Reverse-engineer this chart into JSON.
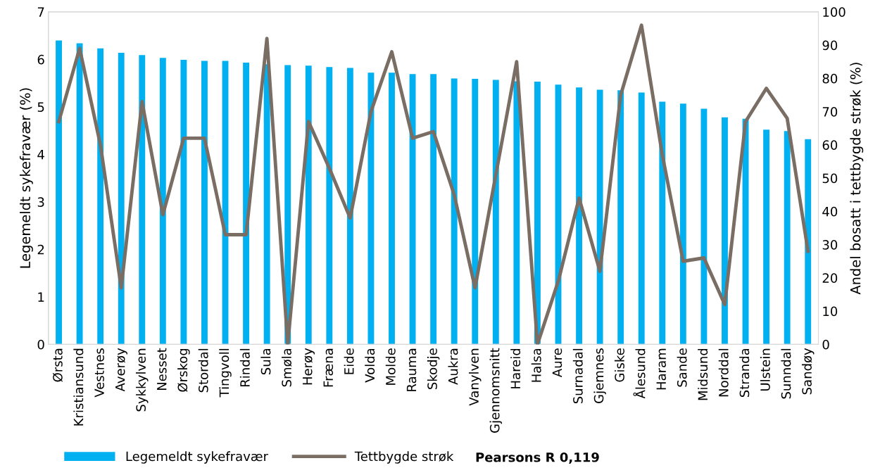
{
  "chart_data": {
    "type": "bar",
    "categories": [
      "Ørsta",
      "Kristiansund",
      "Vestnes",
      "Averøy",
      "Sykkylven",
      "Nesset",
      "Ørskog",
      "Stordal",
      "Tingvoll",
      "Rindal",
      "Sula",
      "Smøla",
      "Herøy",
      "Fræna",
      "Eide",
      "Volda",
      "Molde",
      "Rauma",
      "Skodje",
      "Aukra",
      "Vanylven",
      "Gjennomsnitt",
      "Hareid",
      "Halsa",
      "Aure",
      "Surnadal",
      "Gjemnes",
      "Giske",
      "Ålesund",
      "Haram",
      "Sande",
      "Midsund",
      "Norddal",
      "Stranda",
      "Ulstein",
      "Sunndal",
      "Sandøy"
    ],
    "ylabel": "Legemeldt sykefravær (%)",
    "y2label": "Andel bosatt i tettbygde strøk (%)",
    "series": [
      {
        "name": "Legemeldt sykefravær",
        "color": "#00b0f0",
        "values": [
          6.4,
          6.34,
          6.23,
          6.14,
          6.09,
          6.03,
          5.99,
          5.97,
          5.97,
          5.93,
          5.9,
          5.88,
          5.87,
          5.84,
          5.82,
          5.72,
          5.72,
          5.69,
          5.69,
          5.6,
          5.59,
          5.57,
          5.54,
          5.53,
          5.47,
          5.41,
          5.36,
          5.35,
          5.3,
          5.11,
          5.07,
          4.96,
          4.78,
          4.75,
          4.52,
          4.49,
          4.32
        ]
      },
      {
        "name": "Tettbygde strøk",
        "type": "line",
        "axis": "y2",
        "color": "#7a6e64",
        "values": [
          67,
          89,
          60,
          17,
          73,
          39,
          62,
          62,
          33,
          33,
          92,
          0,
          67,
          53,
          38,
          70,
          88,
          62,
          64,
          45,
          17,
          51,
          85,
          0,
          19,
          44,
          22,
          75,
          96,
          57,
          25,
          26,
          12,
          67,
          77,
          68,
          28
        ]
      }
    ],
    "ylim": [
      0,
      7
    ],
    "yticks": [
      0,
      1,
      2,
      3,
      4,
      5,
      6,
      7
    ],
    "y2lim": [
      0,
      100
    ],
    "y2ticks": [
      0,
      10,
      20,
      30,
      40,
      50,
      60,
      70,
      80,
      90,
      100
    ],
    "grid": false,
    "legend": "bottom",
    "annotations": [
      "Pearsons R 0,119"
    ]
  }
}
